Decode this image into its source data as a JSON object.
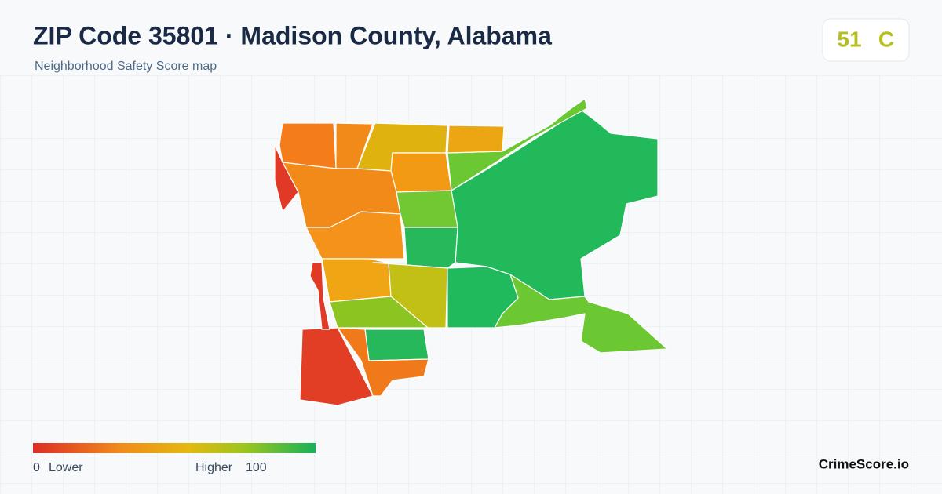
{
  "header": {
    "title": "ZIP Code 35801 · Madison County, Alabama",
    "subtitle": "Neighborhood Safety Score map"
  },
  "score": {
    "value": "51",
    "grade": "C"
  },
  "legend": {
    "min": "0",
    "min_label": "Lower",
    "max_label": "Higher",
    "max": "100"
  },
  "brand": "CrimeScore.io"
}
